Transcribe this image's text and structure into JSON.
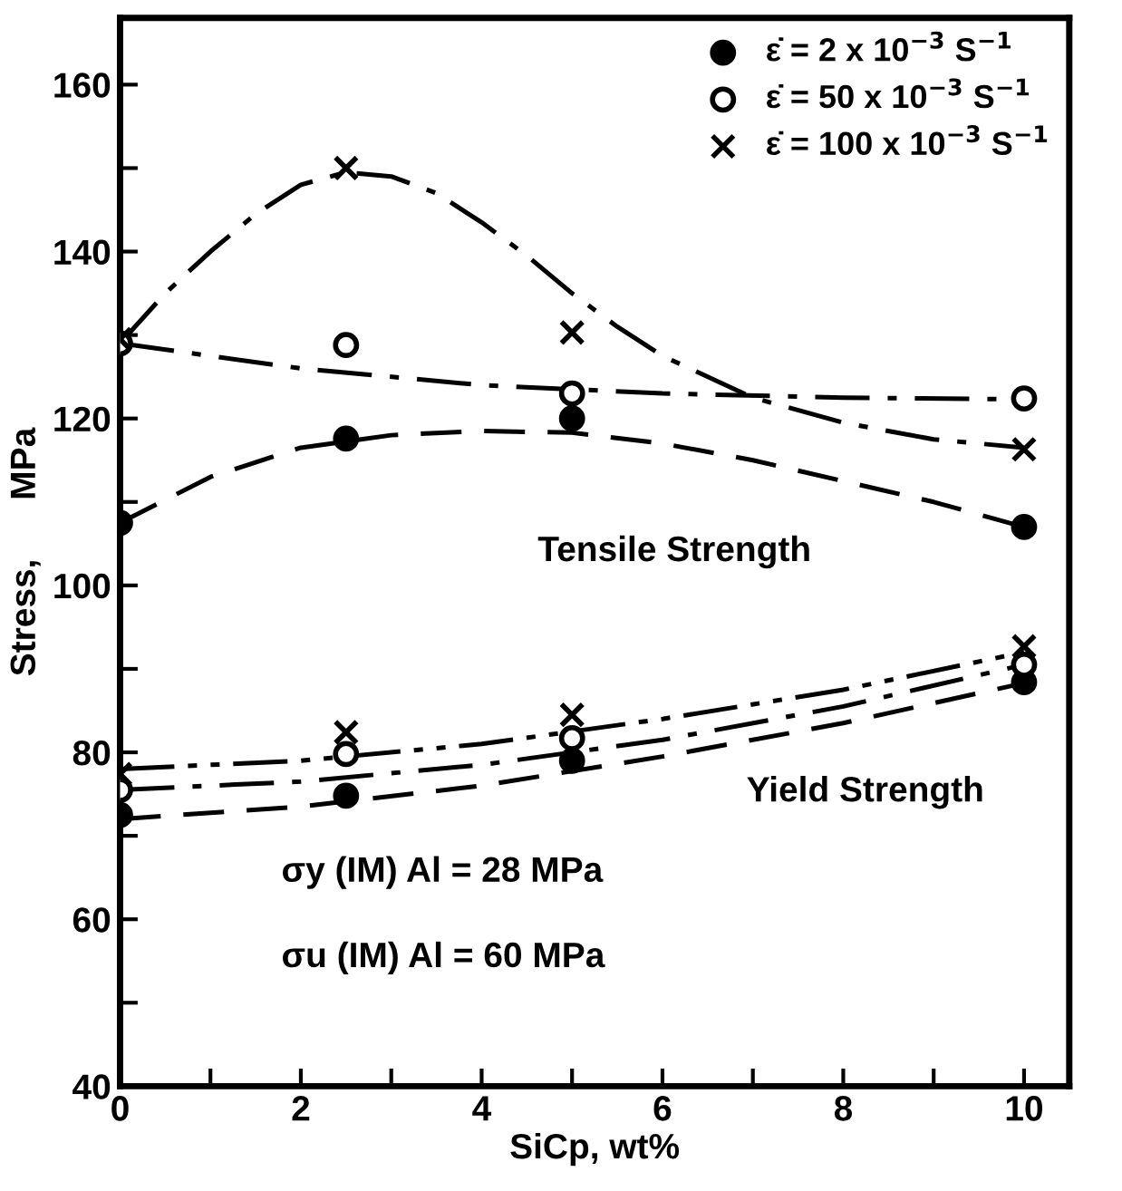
{
  "chart_data": {
    "type": "scatter",
    "xlabel": "SiCp, wt%",
    "ylabel": "Stress,      MPa",
    "xlim": [
      0,
      10.5
    ],
    "ylim": [
      40,
      168
    ],
    "xticks": [
      0,
      {
        "value": 1,
        "label": null
      },
      2,
      {
        "value": 3,
        "label": null
      },
      4,
      {
        "value": 5,
        "label": null
      },
      6,
      {
        "value": 7,
        "label": null
      },
      8,
      {
        "value": 9,
        "label": null
      },
      10
    ],
    "yticks": [
      40,
      {
        "value": 50,
        "label": null
      },
      60,
      {
        "value": 70,
        "label": null
      },
      80,
      {
        "value": 90,
        "label": null
      },
      100,
      {
        "value": 110,
        "label": null
      },
      120,
      {
        "value": 130,
        "label": null
      },
      140,
      {
        "value": 150,
        "label": null
      },
      160
    ],
    "legend": "top right",
    "grid": false,
    "series": [
      {
        "name": "ε̇ = 2 x 10$^{−3}$ S$^{−1}$",
        "color": "#000000",
        "marker": "circle",
        "x": [
          0,
          2.5,
          5,
          10,
          0,
          2.5,
          5,
          10
        ],
        "values": [
          107.5,
          117.6,
          120,
          107,
          72.5,
          74.8,
          79,
          88.4
        ]
      },
      {
        "name": "ε̇ = 50 x 10$^{−3}$ S$^{−1}$",
        "color": "#000000",
        "marker": "open circle",
        "x": [
          0,
          2.5,
          5,
          10,
          0,
          2.5,
          5,
          10
        ],
        "values": [
          129,
          128.8,
          123,
          122.4,
          75.5,
          79.8,
          81.7,
          90.5
        ]
      },
      {
        "name": "ε̇ = 100 x 10$^{−3}$ S$^{−1}$",
        "color": "#000000",
        "marker": "cross",
        "x": [
          0,
          2.5,
          5,
          10,
          0,
          2.5,
          5,
          10
        ],
        "values": [
          129.5,
          150,
          130.3,
          116.3,
          77.4,
          82.4,
          84.5,
          92.7
        ]
      },
      {
        "type": "line",
        "color": "#000000",
        "line_style": "dashed",
        "x": [
          0,
          1,
          2,
          3,
          4,
          5,
          6,
          7,
          8,
          9,
          10
        ],
        "values": [
          107.5,
          113,
          116.5,
          118,
          118.5,
          118.3,
          117,
          115,
          112.5,
          110,
          107
        ]
      },
      {
        "type": "line",
        "color": "#000000",
        "line_style": "dashdot",
        "x": [
          0,
          2,
          4,
          6,
          8,
          10
        ],
        "values": [
          129,
          126,
          124,
          123,
          122.5,
          122.3
        ]
      },
      {
        "type": "line",
        "color": "#000000",
        "line_style": "dashdot",
        "x": [
          0,
          0.5,
          1,
          1.5,
          2,
          2.5,
          3,
          3.5,
          4,
          4.5,
          5,
          5.5,
          6,
          7,
          8,
          9,
          10
        ],
        "values": [
          129,
          135,
          140,
          144.5,
          148,
          149.5,
          149,
          147,
          143.5,
          139.5,
          135,
          131,
          127.5,
          122.5,
          119.5,
          117.5,
          116.5
        ]
      },
      {
        "type": "line",
        "color": "#000000",
        "line_style": "dashed",
        "x": [
          0,
          2,
          4,
          6,
          8,
          10
        ],
        "values": [
          72,
          73.5,
          76,
          79.5,
          83.5,
          88.3
        ]
      },
      {
        "type": "line",
        "color": "#000000",
        "line_style": "dashdot",
        "x": [
          0,
          2,
          4,
          6,
          8,
          10
        ],
        "values": [
          75.5,
          76.5,
          78.5,
          81.5,
          85.5,
          90.5
        ]
      },
      {
        "type": "line",
        "color": "#000000",
        "line_style": "dashdotdot",
        "x": [
          0,
          2,
          4,
          6,
          8,
          10
        ],
        "values": [
          78,
          79,
          81,
          84,
          87.5,
          92
        ]
      }
    ],
    "annotations": [
      "Tensile Strength",
      "Yield Strength",
      "σy (IM) Al = 28 MPa",
      "σu (IM) Al = 60 MPa"
    ]
  }
}
